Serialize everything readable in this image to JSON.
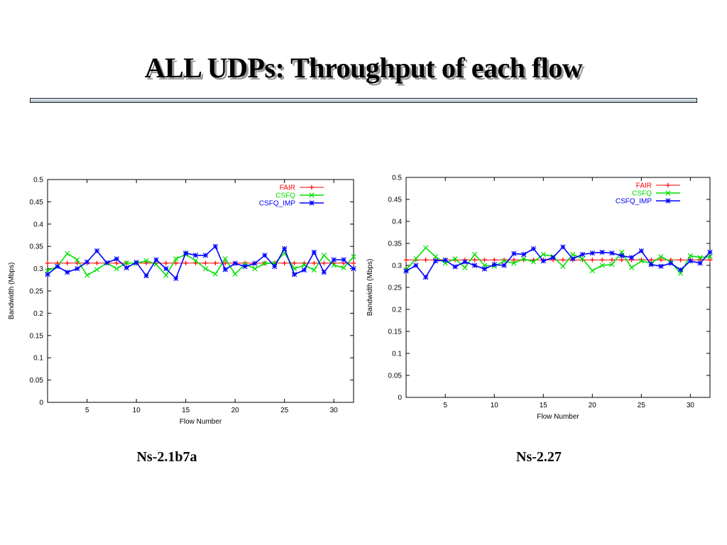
{
  "slide": {
    "title": "ALL UDPs: Throughput of each flow"
  },
  "captions": [
    "Ns-2.1b7a",
    "Ns-2.27"
  ],
  "colors": {
    "fair": "#ff0000",
    "csfq": "#00e000",
    "csfq_imp": "#0000ff"
  },
  "chart_data": [
    {
      "type": "line",
      "xlabel": "Flow Number",
      "ylabel": "Bandwidth (Mbps)",
      "xlim": [
        1,
        32
      ],
      "ylim": [
        0,
        0.5
      ],
      "xticks": [
        5,
        10,
        15,
        20,
        25,
        30
      ],
      "yticks": [
        0,
        0.05,
        0.1,
        0.15,
        0.2,
        0.25,
        0.3,
        0.35,
        0.4,
        0.45,
        0.5
      ],
      "ytick_labels": [
        "0",
        "0.05",
        "0.1",
        "0.15",
        "0.2",
        "0.25",
        "0.3",
        "0.35",
        "0.4",
        "0.45",
        "0.5"
      ],
      "xtick_labels": [
        "5",
        "10",
        "15",
        "20",
        "25",
        "30"
      ],
      "legend_position": "top-right",
      "grid": false,
      "x": [
        1,
        2,
        3,
        4,
        5,
        6,
        7,
        8,
        9,
        10,
        11,
        12,
        13,
        14,
        15,
        16,
        17,
        18,
        19,
        20,
        21,
        22,
        23,
        24,
        25,
        26,
        27,
        28,
        29,
        30,
        31,
        32
      ],
      "series": [
        {
          "name": "FAIR",
          "values": [
            0.3125,
            0.3125,
            0.3125,
            0.3125,
            0.3125,
            0.3125,
            0.3125,
            0.3125,
            0.3125,
            0.3125,
            0.3125,
            0.3125,
            0.3125,
            0.3125,
            0.3125,
            0.3125,
            0.3125,
            0.3125,
            0.3125,
            0.3125,
            0.3125,
            0.3125,
            0.3125,
            0.3125,
            0.3125,
            0.3125,
            0.3125,
            0.3125,
            0.3125,
            0.3125,
            0.3125,
            0.3125
          ]
        },
        {
          "name": "CSFQ",
          "values": [
            0.295,
            0.305,
            0.334,
            0.32,
            0.285,
            0.298,
            0.313,
            0.3,
            0.313,
            0.312,
            0.318,
            0.31,
            0.285,
            0.322,
            0.332,
            0.318,
            0.3,
            0.288,
            0.322,
            0.288,
            0.31,
            0.3,
            0.312,
            0.312,
            0.335,
            0.3,
            0.308,
            0.297,
            0.33,
            0.308,
            0.302,
            0.327
          ]
        },
        {
          "name": "CSFQ_IMP",
          "values": [
            0.287,
            0.305,
            0.292,
            0.3,
            0.315,
            0.34,
            0.313,
            0.322,
            0.302,
            0.314,
            0.284,
            0.32,
            0.3,
            0.278,
            0.335,
            0.33,
            0.33,
            0.35,
            0.298,
            0.312,
            0.305,
            0.312,
            0.33,
            0.305,
            0.345,
            0.287,
            0.297,
            0.337,
            0.292,
            0.32,
            0.32,
            0.3
          ]
        }
      ]
    },
    {
      "type": "line",
      "xlabel": "Flow Number",
      "ylabel": "Bandwidth (Mbps)",
      "xlim": [
        1,
        32
      ],
      "ylim": [
        0,
        0.5
      ],
      "xticks": [
        5,
        10,
        15,
        20,
        25,
        30
      ],
      "yticks": [
        0,
        0.05,
        0.1,
        0.15,
        0.2,
        0.25,
        0.3,
        0.35,
        0.4,
        0.45,
        0.5
      ],
      "ytick_labels": [
        "0",
        "0.05",
        "0.1",
        "0.15",
        "0.2",
        "0.25",
        "0.3",
        "0.35",
        "0.4",
        "0.45",
        "0.5"
      ],
      "xtick_labels": [
        "5",
        "10",
        "15",
        "20",
        "25",
        "30"
      ],
      "legend_position": "top-right",
      "grid": false,
      "x": [
        1,
        2,
        3,
        4,
        5,
        6,
        7,
        8,
        9,
        10,
        11,
        12,
        13,
        14,
        15,
        16,
        17,
        18,
        19,
        20,
        21,
        22,
        23,
        24,
        25,
        26,
        27,
        28,
        29,
        30,
        31,
        32
      ],
      "series": [
        {
          "name": "FAIR",
          "values": [
            0.3125,
            0.3125,
            0.3125,
            0.3125,
            0.3125,
            0.3125,
            0.3125,
            0.3125,
            0.3125,
            0.3125,
            0.3125,
            0.3125,
            0.3125,
            0.3125,
            0.3125,
            0.3125,
            0.3125,
            0.3125,
            0.3125,
            0.3125,
            0.3125,
            0.3125,
            0.3125,
            0.3125,
            0.3125,
            0.3125,
            0.3125,
            0.3125,
            0.3125,
            0.3125,
            0.3125,
            0.3125
          ]
        },
        {
          "name": "CSFQ",
          "values": [
            0.29,
            0.315,
            0.34,
            0.32,
            0.305,
            0.315,
            0.295,
            0.325,
            0.3,
            0.298,
            0.31,
            0.305,
            0.315,
            0.308,
            0.325,
            0.32,
            0.298,
            0.325,
            0.315,
            0.288,
            0.3,
            0.302,
            0.33,
            0.295,
            0.31,
            0.305,
            0.32,
            0.308,
            0.282,
            0.322,
            0.318,
            0.32
          ]
        },
        {
          "name": "CSFQ_IMP",
          "values": [
            0.287,
            0.3,
            0.273,
            0.31,
            0.312,
            0.297,
            0.308,
            0.3,
            0.292,
            0.302,
            0.3,
            0.327,
            0.325,
            0.338,
            0.31,
            0.318,
            0.342,
            0.315,
            0.325,
            0.328,
            0.33,
            0.328,
            0.322,
            0.318,
            0.333,
            0.302,
            0.298,
            0.305,
            0.29,
            0.31,
            0.305,
            0.33
          ]
        }
      ]
    }
  ]
}
